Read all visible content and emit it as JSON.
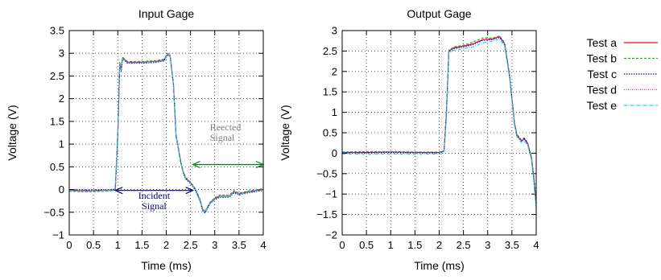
{
  "colors": {
    "test_a": "#ff0000",
    "test_b": "#00c000",
    "test_c": "#0000c0",
    "test_d": "#ff00ff",
    "test_e": "#00e0e0",
    "incident_arrow": "#000080",
    "reflected_arrow": "#008000",
    "incident_text": "#000080",
    "reflected_text": "#808080"
  },
  "legend": {
    "placement": "right",
    "entries": [
      "Test a",
      "Test b",
      "Test c",
      "Test d",
      "Test e"
    ]
  },
  "chart_data": [
    {
      "type": "line",
      "title": "Input Gage",
      "xlabel": "Time (ms)",
      "ylabel": "Voltage (V)",
      "xlim": [
        0,
        4
      ],
      "ylim": [
        -1,
        3.5
      ],
      "xticks": [
        "0",
        "0.5",
        "1",
        "1.5",
        "2",
        "2.5",
        "3",
        "3.5",
        "4"
      ],
      "yticks": [
        "−1",
        "−0.5",
        "0",
        "0.5",
        "1",
        "1.5",
        "2",
        "2.5",
        "3",
        "3.5"
      ],
      "grid": true,
      "series": [
        {
          "name": "Test a",
          "x": [
            0,
            0.4,
            0.9,
            0.95,
            1.0,
            1.04,
            1.07,
            1.1,
            1.2,
            1.5,
            1.8,
            1.95,
            2.03,
            2.08,
            2.15,
            2.2,
            2.3,
            2.35,
            2.4,
            2.5,
            2.6,
            2.7,
            2.75,
            2.8,
            2.9,
            3.0,
            3.1,
            3.3,
            3.4,
            3.5,
            3.7,
            4.0
          ],
          "y": [
            -0.02,
            -0.03,
            -0.02,
            0.0,
            1.2,
            2.75,
            2.65,
            2.9,
            2.8,
            2.8,
            2.82,
            2.85,
            2.98,
            2.95,
            2.3,
            1.2,
            0.6,
            0.38,
            0.25,
            0.15,
            0.0,
            -0.25,
            -0.45,
            -0.5,
            -0.3,
            -0.2,
            -0.15,
            -0.15,
            -0.05,
            -0.1,
            -0.05,
            0.0
          ]
        },
        {
          "name": "Test b",
          "x": [
            0,
            0.4,
            0.9,
            0.95,
            1.0,
            1.04,
            1.07,
            1.1,
            1.2,
            1.5,
            1.8,
            1.95,
            2.03,
            2.08,
            2.15,
            2.2,
            2.3,
            2.35,
            2.4,
            2.5,
            2.6,
            2.7,
            2.75,
            2.8,
            2.9,
            3.0,
            3.1,
            3.3,
            3.4,
            3.5,
            3.7,
            4.0
          ],
          "y": [
            -0.04,
            -0.05,
            -0.03,
            0.02,
            1.25,
            2.8,
            2.7,
            2.92,
            2.82,
            2.82,
            2.84,
            2.87,
            3.0,
            2.97,
            2.32,
            1.22,
            0.62,
            0.4,
            0.27,
            0.17,
            0.02,
            -0.22,
            -0.42,
            -0.48,
            -0.28,
            -0.18,
            -0.12,
            -0.12,
            -0.02,
            -0.08,
            -0.03,
            0.02
          ]
        },
        {
          "name": "Test c",
          "x": [
            0,
            0.4,
            0.9,
            0.95,
            1.0,
            1.04,
            1.07,
            1.1,
            1.2,
            1.5,
            1.8,
            1.95,
            2.03,
            2.08,
            2.15,
            2.2,
            2.3,
            2.35,
            2.4,
            2.5,
            2.6,
            2.7,
            2.75,
            2.8,
            2.9,
            3.0,
            3.1,
            3.3,
            3.4,
            3.5,
            3.7,
            4.0
          ],
          "y": [
            0.0,
            -0.01,
            0.0,
            0.04,
            1.15,
            2.7,
            2.6,
            2.88,
            2.78,
            2.78,
            2.8,
            2.83,
            2.96,
            2.93,
            2.28,
            1.18,
            0.58,
            0.36,
            0.23,
            0.13,
            -0.02,
            -0.27,
            -0.47,
            -0.52,
            -0.32,
            -0.22,
            -0.17,
            -0.17,
            -0.07,
            -0.12,
            -0.07,
            -0.02
          ]
        },
        {
          "name": "Test d",
          "x": [
            0,
            0.4,
            0.9,
            0.95,
            1.0,
            1.04,
            1.07,
            1.1,
            1.2,
            1.5,
            1.8,
            1.95,
            2.03,
            2.08,
            2.15,
            2.2,
            2.3,
            2.35,
            2.4,
            2.5,
            2.6,
            2.7,
            2.75,
            2.8,
            2.9,
            3.0,
            3.1,
            3.3,
            3.4,
            3.5,
            3.7,
            4.0
          ],
          "y": [
            -0.01,
            -0.02,
            -0.01,
            0.01,
            1.22,
            2.78,
            2.68,
            2.91,
            2.81,
            2.81,
            2.83,
            2.86,
            2.99,
            2.96,
            2.31,
            1.21,
            0.61,
            0.39,
            0.26,
            0.16,
            0.01,
            -0.24,
            -0.44,
            -0.49,
            -0.29,
            -0.19,
            -0.14,
            -0.14,
            -0.04,
            -0.09,
            -0.04,
            0.01
          ]
        },
        {
          "name": "Test e",
          "x": [
            0,
            0.4,
            0.9,
            0.95,
            1.0,
            1.04,
            1.07,
            1.1,
            1.2,
            1.5,
            1.8,
            1.95,
            2.03,
            2.08,
            2.15,
            2.2,
            2.3,
            2.35,
            2.4,
            2.5,
            2.6,
            2.7,
            2.75,
            2.8,
            2.9,
            3.0,
            3.1,
            3.3,
            3.4,
            3.5,
            3.7,
            4.0
          ],
          "y": [
            -0.03,
            -0.04,
            -0.02,
            0.03,
            1.18,
            2.72,
            2.62,
            2.89,
            2.79,
            2.79,
            2.81,
            2.84,
            2.97,
            2.94,
            2.29,
            1.19,
            0.59,
            0.37,
            0.24,
            0.14,
            -0.01,
            -0.26,
            -0.46,
            -0.51,
            -0.31,
            -0.21,
            -0.16,
            -0.16,
            -0.06,
            -0.11,
            -0.06,
            -0.01
          ]
        }
      ],
      "annotations": [
        {
          "text_lines": [
            "Incident",
            "Signal"
          ],
          "arrow_x": [
            0.95,
            2.55
          ],
          "arrow_y": -0.02,
          "text_x": 1.75,
          "text_y": -0.2
        },
        {
          "text_lines": [
            "Reected",
            "Signal"
          ],
          "arrow_x": [
            2.55,
            4.0
          ],
          "arrow_y": 0.55,
          "text_x": 2.9,
          "text_y": 1.3
        }
      ]
    },
    {
      "type": "line",
      "title": "Output Gage",
      "xlabel": "Time (ms)",
      "ylabel": "Voltage (V)",
      "xlim": [
        0,
        4
      ],
      "ylim": [
        -2,
        3
      ],
      "xticks": [
        "0",
        "0.5",
        "1",
        "1.5",
        "2",
        "2.5",
        "3",
        "3.5",
        "4"
      ],
      "yticks": [
        "−2",
        "−1.5",
        "−1",
        "−0.5",
        "0",
        "0.5",
        "1",
        "1.5",
        "2",
        "2.5",
        "3"
      ],
      "grid": true,
      "series": [
        {
          "name": "Test a",
          "x": [
            0,
            0.5,
            1.0,
            1.5,
            2.0,
            2.1,
            2.15,
            2.2,
            2.3,
            2.5,
            2.7,
            2.9,
            3.1,
            3.25,
            3.35,
            3.45,
            3.55,
            3.6,
            3.7,
            3.75,
            3.82,
            3.9,
            3.95,
            4.0
          ],
          "y": [
            0.02,
            0.02,
            0.03,
            0.02,
            0.02,
            0.05,
            1.0,
            2.5,
            2.58,
            2.62,
            2.68,
            2.78,
            2.8,
            2.85,
            2.68,
            1.9,
            0.75,
            0.45,
            0.3,
            0.35,
            0.25,
            -0.1,
            -0.6,
            -1.2
          ]
        },
        {
          "name": "Test b",
          "x": [
            0,
            0.5,
            1.0,
            1.5,
            2.0,
            2.1,
            2.15,
            2.2,
            2.3,
            2.5,
            2.7,
            2.9,
            3.1,
            3.25,
            3.35,
            3.45,
            3.55,
            3.6,
            3.7,
            3.75,
            3.82,
            3.9,
            3.95,
            4.0
          ],
          "y": [
            0.03,
            0.04,
            0.04,
            0.03,
            0.03,
            0.06,
            1.05,
            2.52,
            2.6,
            2.64,
            2.72,
            2.82,
            2.82,
            2.87,
            2.7,
            1.92,
            0.77,
            0.47,
            0.32,
            0.37,
            0.27,
            -0.08,
            -0.55,
            -1.1
          ]
        },
        {
          "name": "Test c",
          "x": [
            0,
            0.5,
            1.0,
            1.5,
            2.0,
            2.1,
            2.15,
            2.2,
            2.3,
            2.5,
            2.7,
            2.9,
            3.1,
            3.25,
            3.35,
            3.45,
            3.55,
            3.6,
            3.7,
            3.75,
            3.82,
            3.9,
            3.95,
            4.0
          ],
          "y": [
            0.01,
            0.01,
            0.02,
            0.01,
            0.01,
            0.04,
            0.95,
            2.48,
            2.56,
            2.6,
            2.66,
            2.76,
            2.78,
            2.83,
            2.66,
            1.88,
            0.73,
            0.43,
            0.28,
            0.38,
            0.23,
            -0.12,
            -0.65,
            -1.3
          ]
        },
        {
          "name": "Test d",
          "x": [
            0,
            0.5,
            1.0,
            1.5,
            2.0,
            2.1,
            2.15,
            2.2,
            2.3,
            2.5,
            2.7,
            2.9,
            3.1,
            3.25,
            3.35,
            3.45,
            3.55,
            3.6,
            3.7,
            3.75,
            3.82,
            3.9,
            3.95,
            4.0
          ],
          "y": [
            0.02,
            0.03,
            0.03,
            0.02,
            0.02,
            0.05,
            1.02,
            2.49,
            2.57,
            2.61,
            2.67,
            2.77,
            2.79,
            2.84,
            2.67,
            1.89,
            0.74,
            0.44,
            0.29,
            0.34,
            0.24,
            -0.11,
            -0.62,
            -1.25
          ]
        },
        {
          "name": "Test e",
          "x": [
            0,
            0.5,
            1.0,
            1.5,
            2.0,
            2.1,
            2.15,
            2.2,
            2.3,
            2.5,
            2.7,
            2.9,
            3.1,
            3.25,
            3.35,
            3.45,
            3.55,
            3.6,
            3.7,
            3.75,
            3.82,
            3.9,
            3.95,
            4.0
          ],
          "y": [
            -0.02,
            -0.03,
            -0.02,
            -0.03,
            -0.02,
            0.0,
            0.9,
            2.45,
            2.52,
            2.56,
            2.6,
            2.7,
            2.74,
            2.79,
            2.62,
            1.85,
            0.7,
            0.4,
            0.25,
            0.3,
            0.2,
            -0.15,
            -0.7,
            -1.4
          ]
        }
      ],
      "annotations": []
    }
  ]
}
